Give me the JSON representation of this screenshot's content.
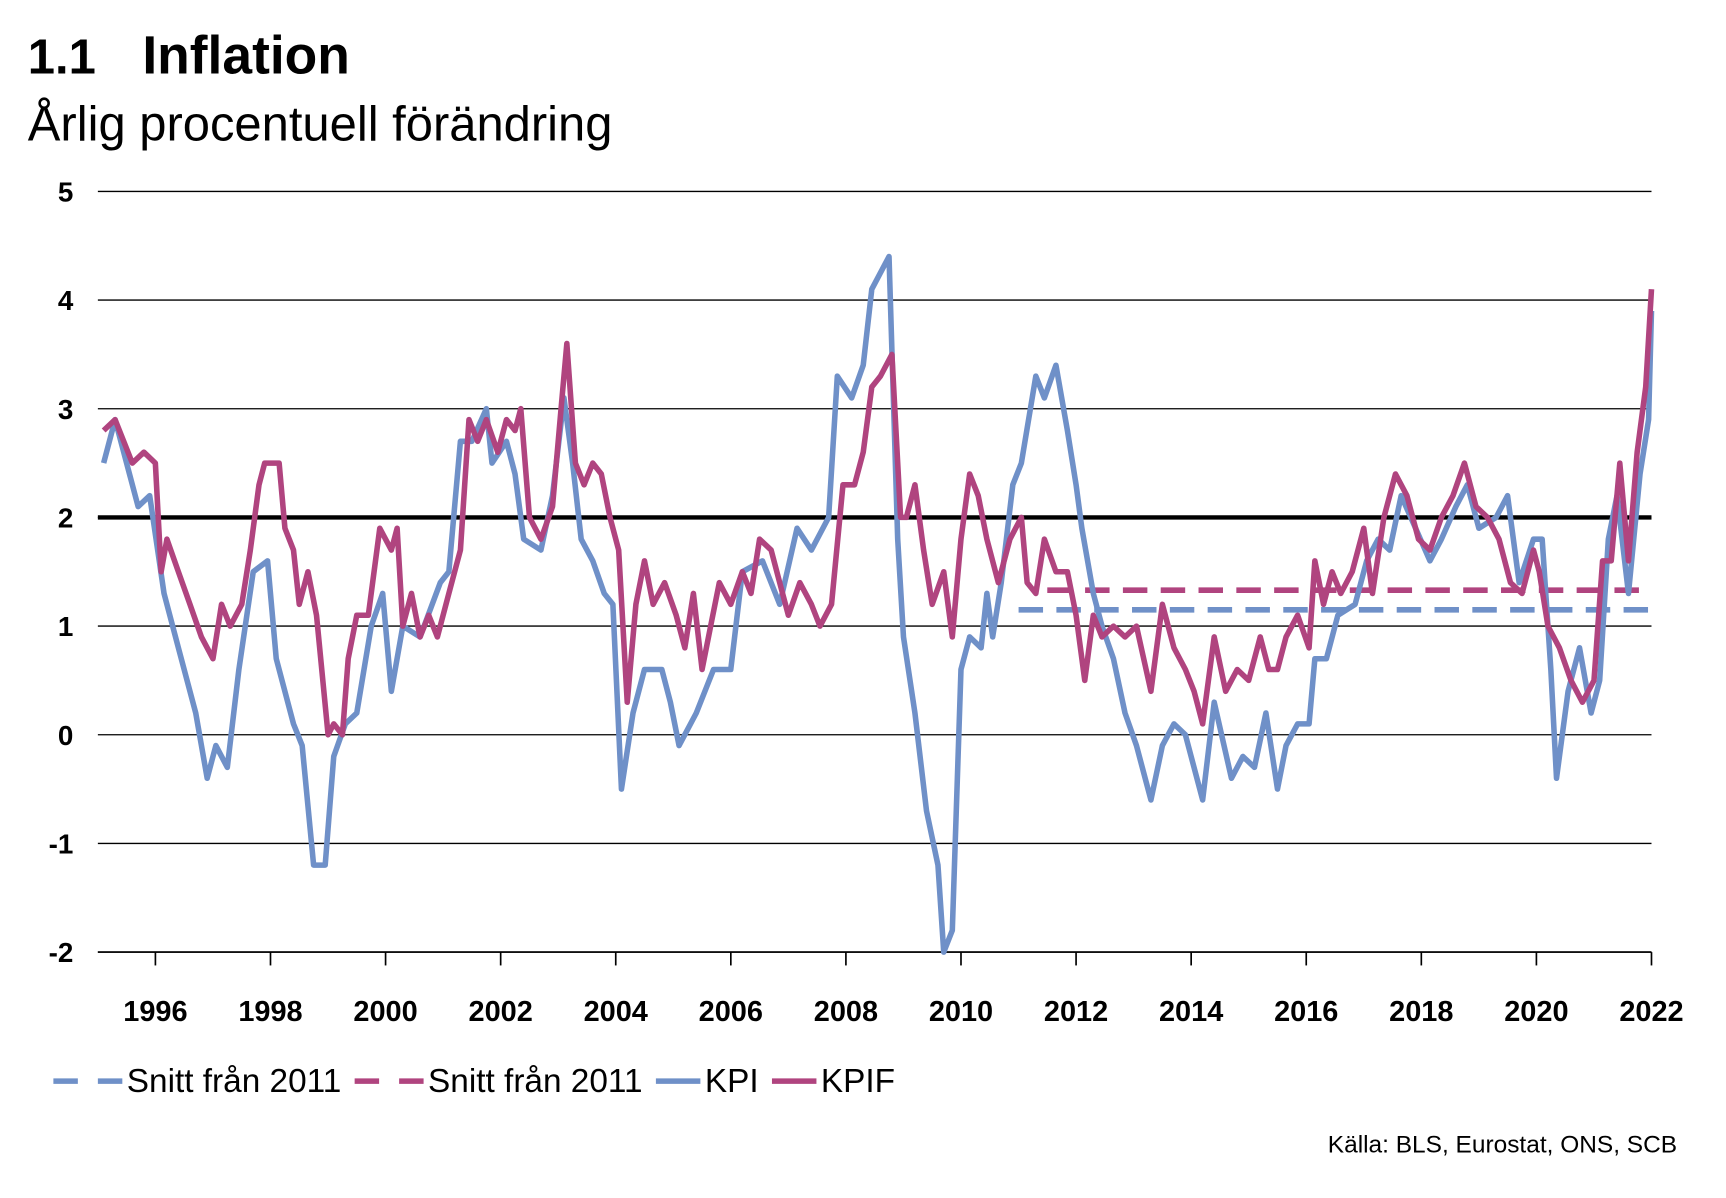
{
  "chart_data": {
    "type": "line",
    "title_number": "1.1",
    "title": "Inflation",
    "subtitle": "Årlig procentuell förändring",
    "source": "Källa: BLS, Eurostat, ONS, SCB",
    "xlim": [
      1995,
      2022
    ],
    "xticks": [
      1996,
      1998,
      2000,
      2002,
      2004,
      2006,
      2008,
      2010,
      2012,
      2014,
      2016,
      2018,
      2020,
      2022
    ],
    "ylim": [
      -2,
      5
    ],
    "yticks": [
      -2,
      -1,
      0,
      1,
      2,
      3,
      4,
      5
    ],
    "grid": true,
    "hline": 2,
    "series": [
      {
        "name": "Snitt från 2011",
        "color": "#6f90c8",
        "dashed": true,
        "x": [
          2011.0,
          2022.0
        ],
        "values": [
          1.15,
          1.15
        ]
      },
      {
        "name": "Snitt från 2011",
        "color": "#b0447f",
        "dashed": true,
        "x": [
          2011.5,
          2022.0
        ],
        "values": [
          1.33,
          1.33
        ]
      },
      {
        "name": "KPI",
        "color": "#6f90c8",
        "dashed": false,
        "x": [
          1995.1,
          1995.3,
          1995.7,
          1995.9,
          1996.15,
          1996.4,
          1996.7,
          1996.9,
          1997.05,
          1997.25,
          1997.45,
          1997.7,
          1997.95,
          1998.1,
          1998.4,
          1998.55,
          1998.75,
          1998.95,
          1999.1,
          1999.3,
          1999.5,
          1999.75,
          1999.95,
          2000.1,
          2000.3,
          2000.6,
          2000.95,
          2001.1,
          2001.3,
          2001.5,
          2001.75,
          2001.85,
          2002.1,
          2002.25,
          2002.4,
          2002.7,
          2002.9,
          2003.1,
          2003.25,
          2003.4,
          2003.6,
          2003.8,
          2003.95,
          2004.1,
          2004.3,
          2004.5,
          2004.8,
          2004.95,
          2005.1,
          2005.4,
          2005.7,
          2006.0,
          2006.2,
          2006.55,
          2006.85,
          2007.15,
          2007.4,
          2007.7,
          2007.85,
          2008.1,
          2008.3,
          2008.45,
          2008.75,
          2008.9,
          2009.0,
          2009.2,
          2009.4,
          2009.6,
          2009.7,
          2009.85,
          2010.0,
          2010.15,
          2010.35,
          2010.45,
          2010.55,
          2010.7,
          2010.9,
          2011.05,
          2011.3,
          2011.45,
          2011.65,
          2011.85,
          2012.0,
          2012.1,
          2012.3,
          2012.45,
          2012.65,
          2012.85,
          2013.05,
          2013.3,
          2013.5,
          2013.7,
          2013.9,
          2014.2,
          2014.4,
          2014.7,
          2014.9,
          2015.1,
          2015.3,
          2015.5,
          2015.65,
          2015.85,
          2016.05,
          2016.15,
          2016.35,
          2016.55,
          2016.85,
          2017.05,
          2017.25,
          2017.45,
          2017.65,
          2017.9,
          2018.15,
          2018.35,
          2018.6,
          2018.8,
          2019.0,
          2019.3,
          2019.5,
          2019.7,
          2019.95,
          2020.1,
          2020.25,
          2020.35,
          2020.55,
          2020.75,
          2020.95,
          2021.1,
          2021.25,
          2021.4,
          2021.6,
          2021.8,
          2021.95,
          2022.0
        ],
        "values": [
          2.5,
          2.9,
          2.1,
          2.2,
          1.3,
          0.8,
          0.2,
          -0.4,
          -0.1,
          -0.3,
          0.6,
          1.5,
          1.6,
          0.7,
          0.1,
          -0.1,
          -1.2,
          -1.2,
          -0.2,
          0.1,
          0.2,
          1.0,
          1.3,
          0.4,
          1.0,
          0.9,
          1.4,
          1.5,
          2.7,
          2.7,
          3.0,
          2.5,
          2.7,
          2.4,
          1.8,
          1.7,
          2.2,
          3.1,
          2.5,
          1.8,
          1.6,
          1.3,
          1.2,
          -0.5,
          0.2,
          0.6,
          0.6,
          0.3,
          -0.1,
          0.2,
          0.6,
          0.6,
          1.5,
          1.6,
          1.2,
          1.9,
          1.7,
          2.0,
          3.3,
          3.1,
          3.4,
          4.1,
          4.4,
          1.8,
          0.9,
          0.2,
          -0.7,
          -1.2,
          -2.0,
          -1.8,
          0.6,
          0.9,
          0.8,
          1.3,
          0.9,
          1.4,
          2.3,
          2.5,
          3.3,
          3.1,
          3.4,
          2.8,
          2.3,
          1.9,
          1.3,
          1.0,
          0.7,
          0.2,
          -0.1,
          -0.6,
          -0.1,
          0.1,
          0.0,
          -0.6,
          0.3,
          -0.4,
          -0.2,
          -0.3,
          0.2,
          -0.5,
          -0.1,
          0.1,
          0.1,
          0.7,
          0.7,
          1.1,
          1.2,
          1.6,
          1.8,
          1.7,
          2.2,
          1.9,
          1.6,
          1.8,
          2.1,
          2.3,
          1.9,
          2.0,
          2.2,
          1.4,
          1.8,
          1.8,
          0.6,
          -0.4,
          0.4,
          0.8,
          0.2,
          0.5,
          1.8,
          2.2,
          1.3,
          2.4,
          2.9,
          3.9
        ]
      },
      {
        "name": "KPIF",
        "color": "#b0447f",
        "dashed": false,
        "x": [
          1995.1,
          1995.3,
          1995.6,
          1995.8,
          1996.0,
          1996.1,
          1996.2,
          1996.4,
          1996.6,
          1996.8,
          1997.0,
          1997.15,
          1997.3,
          1997.5,
          1997.65,
          1997.8,
          1997.9,
          1998.15,
          1998.25,
          1998.4,
          1998.5,
          1998.65,
          1998.8,
          1999.0,
          1999.1,
          1999.25,
          1999.35,
          1999.5,
          1999.7,
          1999.9,
          2000.1,
          2000.2,
          2000.3,
          2000.45,
          2000.6,
          2000.75,
          2000.9,
          2001.1,
          2001.3,
          2001.45,
          2001.6,
          2001.75,
          2001.95,
          2002.1,
          2002.25,
          2002.35,
          2002.5,
          2002.7,
          2002.9,
          2003.05,
          2003.15,
          2003.3,
          2003.45,
          2003.6,
          2003.75,
          2003.9,
          2004.05,
          2004.2,
          2004.35,
          2004.5,
          2004.65,
          2004.85,
          2005.05,
          2005.2,
          2005.35,
          2005.5,
          2005.65,
          2005.8,
          2006.0,
          2006.2,
          2006.35,
          2006.5,
          2006.7,
          2006.85,
          2007.0,
          2007.2,
          2007.4,
          2007.55,
          2007.75,
          2007.95,
          2008.15,
          2008.3,
          2008.45,
          2008.6,
          2008.8,
          2008.95,
          2009.05,
          2009.2,
          2009.35,
          2009.5,
          2009.7,
          2009.85,
          2010.0,
          2010.15,
          2010.3,
          2010.45,
          2010.65,
          2010.85,
          2011.05,
          2011.15,
          2011.3,
          2011.45,
          2011.65,
          2011.85,
          2012.0,
          2012.15,
          2012.3,
          2012.45,
          2012.65,
          2012.85,
          2013.05,
          2013.3,
          2013.5,
          2013.7,
          2013.9,
          2014.05,
          2014.2,
          2014.4,
          2014.6,
          2014.8,
          2015.0,
          2015.2,
          2015.35,
          2015.5,
          2015.65,
          2015.85,
          2016.05,
          2016.15,
          2016.3,
          2016.45,
          2016.6,
          2016.8,
          2017.0,
          2017.15,
          2017.35,
          2017.55,
          2017.75,
          2017.95,
          2018.15,
          2018.35,
          2018.55,
          2018.75,
          2018.95,
          2019.15,
          2019.35,
          2019.55,
          2019.75,
          2019.95,
          2020.05,
          2020.2,
          2020.4,
          2020.6,
          2020.8,
          2021.0,
          2021.15,
          2021.3,
          2021.45,
          2021.6,
          2021.75,
          2021.9,
          2022.0
        ],
        "values": [
          2.8,
          2.9,
          2.5,
          2.6,
          2.5,
          1.5,
          1.8,
          1.5,
          1.2,
          0.9,
          0.7,
          1.2,
          1.0,
          1.2,
          1.7,
          2.3,
          2.5,
          2.5,
          1.9,
          1.7,
          1.2,
          1.5,
          1.1,
          0.0,
          0.1,
          0.0,
          0.7,
          1.1,
          1.1,
          1.9,
          1.7,
          1.9,
          1.0,
          1.3,
          0.9,
          1.1,
          0.9,
          1.3,
          1.7,
          2.9,
          2.7,
          2.9,
          2.6,
          2.9,
          2.8,
          3.0,
          2.0,
          1.8,
          2.1,
          3.0,
          3.6,
          2.5,
          2.3,
          2.5,
          2.4,
          2.0,
          1.7,
          0.3,
          1.2,
          1.6,
          1.2,
          1.4,
          1.1,
          0.8,
          1.3,
          0.6,
          1.0,
          1.4,
          1.2,
          1.5,
          1.3,
          1.8,
          1.7,
          1.4,
          1.1,
          1.4,
          1.2,
          1.0,
          1.2,
          2.3,
          2.3,
          2.6,
          3.2,
          3.3,
          3.5,
          2.0,
          2.0,
          2.3,
          1.7,
          1.2,
          1.5,
          0.9,
          1.8,
          2.4,
          2.2,
          1.8,
          1.4,
          1.8,
          2.0,
          1.4,
          1.3,
          1.8,
          1.5,
          1.5,
          1.1,
          0.5,
          1.1,
          0.9,
          1.0,
          0.9,
          1.0,
          0.4,
          1.2,
          0.8,
          0.6,
          0.4,
          0.1,
          0.9,
          0.4,
          0.6,
          0.5,
          0.9,
          0.6,
          0.6,
          0.9,
          1.1,
          0.8,
          1.6,
          1.2,
          1.5,
          1.3,
          1.5,
          1.9,
          1.3,
          2.0,
          2.4,
          2.2,
          1.8,
          1.7,
          2.0,
          2.2,
          2.5,
          2.1,
          2.0,
          1.8,
          1.4,
          1.3,
          1.7,
          1.5,
          1.0,
          0.8,
          0.5,
          0.3,
          0.5,
          1.6,
          1.6,
          2.5,
          1.6,
          2.6,
          3.2,
          4.1
        ]
      }
    ]
  }
}
